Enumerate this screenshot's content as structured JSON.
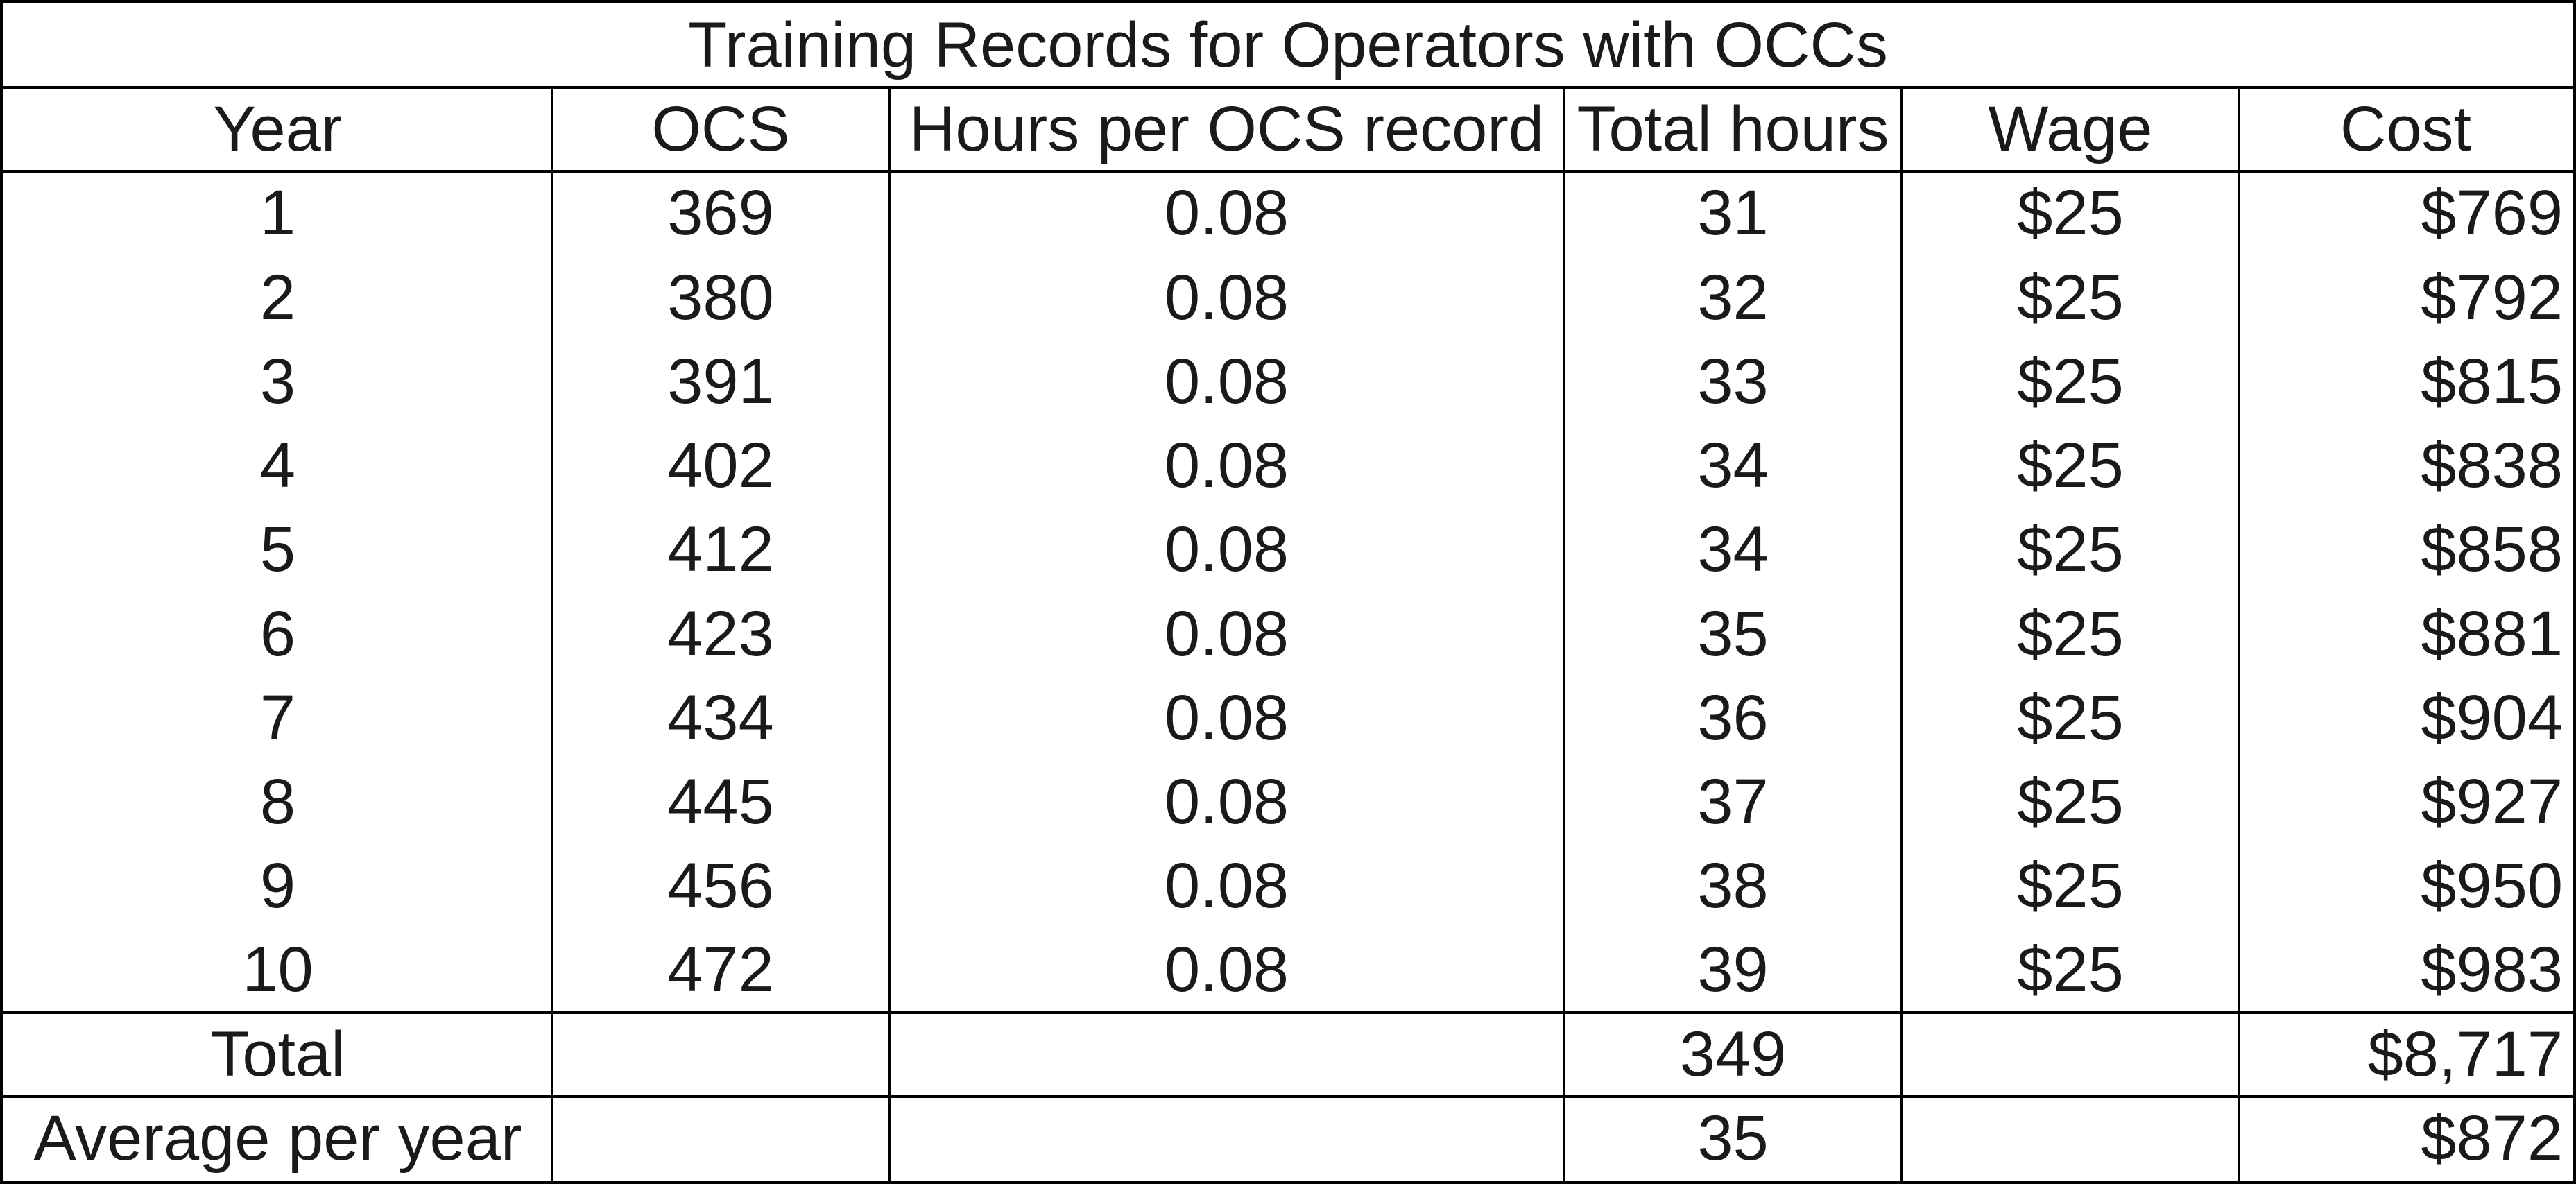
{
  "title": "Training Records for Operators with OCCs",
  "header": [
    "Year",
    "OCS",
    "Hours per OCS record",
    "Total hours",
    "Wage",
    "Cost"
  ],
  "rows": [
    [
      "1",
      "369",
      "0.08",
      "31",
      "$25",
      "$769"
    ],
    [
      "2",
      "380",
      "0.08",
      "32",
      "$25",
      "$792"
    ],
    [
      "3",
      "391",
      "0.08",
      "33",
      "$25",
      "$815"
    ],
    [
      "4",
      "402",
      "0.08",
      "34",
      "$25",
      "$838"
    ],
    [
      "5",
      "412",
      "0.08",
      "34",
      "$25",
      "$858"
    ],
    [
      "6",
      "423",
      "0.08",
      "35",
      "$25",
      "$881"
    ],
    [
      "7",
      "434",
      "0.08",
      "36",
      "$25",
      "$904"
    ],
    [
      "8",
      "445",
      "0.08",
      "37",
      "$25",
      "$927"
    ],
    [
      "9",
      "456",
      "0.08",
      "38",
      "$25",
      "$950"
    ],
    [
      "10",
      "472",
      "0.08",
      "39",
      "$25",
      "$983"
    ]
  ],
  "total": {
    "label": "Total",
    "total_hours": "349",
    "cost": "$8,717"
  },
  "average": {
    "label": "Average per year",
    "total_hours": "35",
    "cost": "$872"
  }
}
